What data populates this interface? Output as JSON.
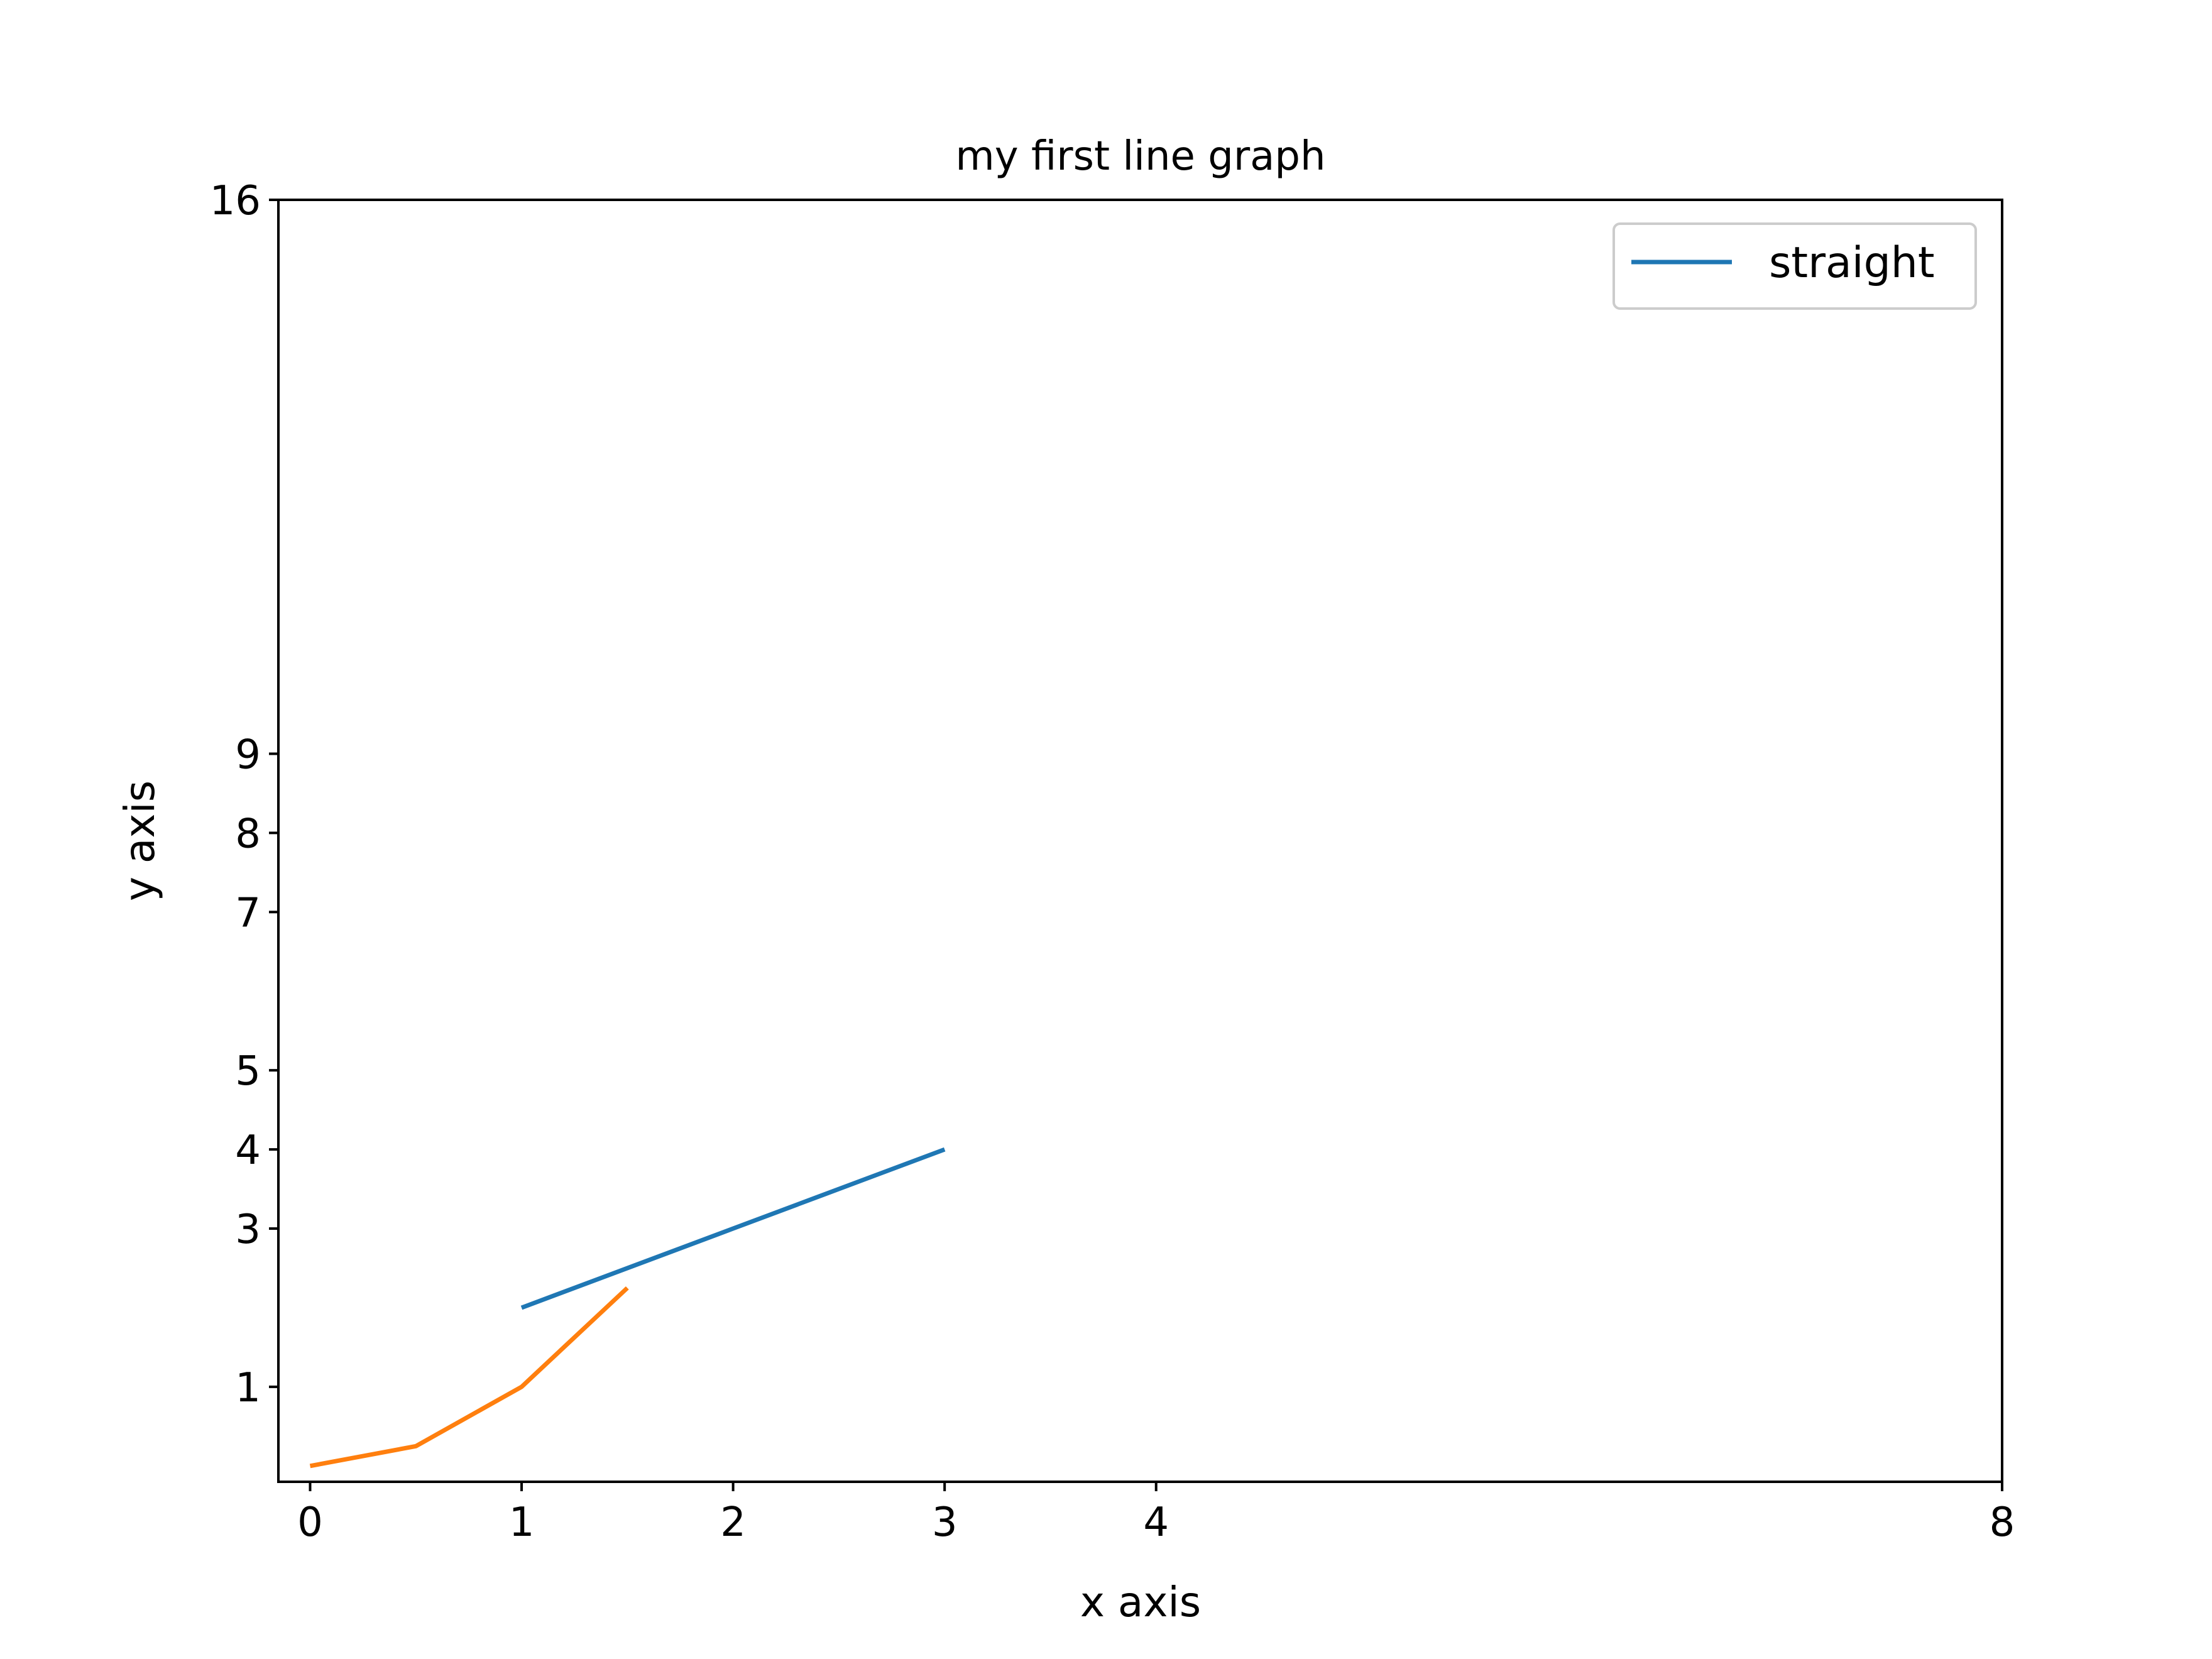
{
  "chart_data": {
    "type": "line",
    "title": "my first line graph",
    "xlabel": "x axis",
    "ylabel": "y axis",
    "xlim": [
      -0.15,
      8
    ],
    "ylim": [
      -0.2,
      16
    ],
    "xticks": [
      0,
      1,
      2,
      3,
      4,
      8
    ],
    "xtick_labels": [
      "0",
      "1",
      "2",
      "3",
      "4",
      "8"
    ],
    "yticks": [
      1,
      3,
      4,
      5,
      7,
      8,
      9,
      16
    ],
    "ytick_labels": [
      "1",
      "3",
      "4",
      "5",
      "7",
      "8",
      "9",
      "16"
    ],
    "grid": false,
    "legend": {
      "position": "top-right"
    },
    "series": [
      {
        "name": "straight",
        "color": "#1f77b4",
        "x": [
          1,
          2,
          3
        ],
        "y": [
          2,
          3,
          4
        ]
      },
      {
        "color": "#ff7f0e",
        "x": [
          0,
          0.5,
          1,
          1.5
        ],
        "y": [
          0,
          0.25,
          1,
          2.25
        ]
      }
    ]
  }
}
